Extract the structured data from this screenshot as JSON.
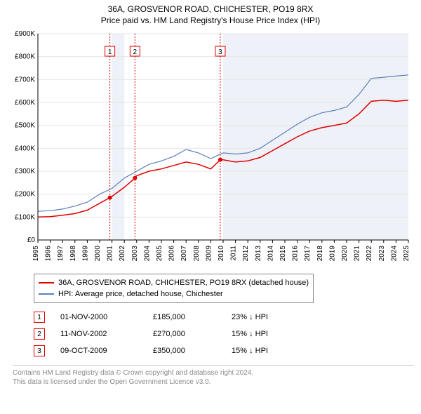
{
  "header": {
    "title": "36A, GROSVENOR ROAD, CHICHESTER, PO19 8RX",
    "subtitle": "Price paid vs. HM Land Registry's House Price Index (HPI)"
  },
  "chart": {
    "type": "line",
    "background_color": "#ffffff",
    "y": {
      "min": 0,
      "max": 900000,
      "step": 100000,
      "labels": [
        "£0",
        "£100K",
        "£200K",
        "£300K",
        "£400K",
        "£500K",
        "£600K",
        "£700K",
        "£800K",
        "£900K"
      ],
      "grid_color": "#e6e6e6",
      "axis_color": "#000000",
      "label_fontsize": 10,
      "label_color": "#000000"
    },
    "x": {
      "years": [
        1995,
        1996,
        1997,
        1998,
        1999,
        2000,
        2001,
        2002,
        2003,
        2004,
        2005,
        2006,
        2007,
        2008,
        2009,
        2010,
        2011,
        2012,
        2013,
        2014,
        2015,
        2016,
        2017,
        2018,
        2019,
        2020,
        2021,
        2022,
        2023,
        2024,
        2025
      ],
      "label_fontsize": 10,
      "label_color": "#000000",
      "axis_color": "#000000"
    },
    "highlight_band": {
      "from": 2001,
      "to": 2002,
      "fill": "#eef2f8"
    },
    "highlight_band2": {
      "from": 2010,
      "to": 2025,
      "fill": "#eef2f8"
    },
    "event_markers": [
      {
        "n": "1",
        "year": 2000.83,
        "line_color": "#e00000",
        "box_border": "#e00000"
      },
      {
        "n": "2",
        "year": 2002.86,
        "line_color": "#e00000",
        "box_border": "#e00000"
      },
      {
        "n": "3",
        "year": 2009.77,
        "line_color": "#e00000",
        "box_border": "#e00000"
      }
    ],
    "series": [
      {
        "name": "red",
        "color": "#e00000",
        "width": 1.5,
        "points": [
          [
            1995,
            100000
          ],
          [
            1996,
            102000
          ],
          [
            1997,
            108000
          ],
          [
            1998,
            115000
          ],
          [
            1999,
            130000
          ],
          [
            2000,
            160000
          ],
          [
            2000.83,
            185000
          ],
          [
            2001,
            190000
          ],
          [
            2002,
            230000
          ],
          [
            2002.86,
            270000
          ],
          [
            2003,
            280000
          ],
          [
            2004,
            300000
          ],
          [
            2005,
            310000
          ],
          [
            2006,
            325000
          ],
          [
            2007,
            340000
          ],
          [
            2008,
            330000
          ],
          [
            2009,
            310000
          ],
          [
            2009.77,
            350000
          ],
          [
            2010,
            350000
          ],
          [
            2011,
            340000
          ],
          [
            2012,
            345000
          ],
          [
            2013,
            360000
          ],
          [
            2014,
            390000
          ],
          [
            2015,
            420000
          ],
          [
            2016,
            450000
          ],
          [
            2017,
            475000
          ],
          [
            2018,
            490000
          ],
          [
            2019,
            500000
          ],
          [
            2020,
            510000
          ],
          [
            2021,
            550000
          ],
          [
            2022,
            605000
          ],
          [
            2023,
            610000
          ],
          [
            2024,
            605000
          ],
          [
            2025,
            610000
          ]
        ],
        "sale_markers": [
          {
            "year": 2000.83,
            "value": 185000
          },
          {
            "year": 2002.86,
            "value": 270000
          },
          {
            "year": 2009.77,
            "value": 350000
          }
        ]
      },
      {
        "name": "blue",
        "color": "#5b7fb8",
        "width": 1.2,
        "points": [
          [
            1995,
            125000
          ],
          [
            1996,
            128000
          ],
          [
            1997,
            135000
          ],
          [
            1998,
            148000
          ],
          [
            1999,
            165000
          ],
          [
            2000,
            200000
          ],
          [
            2001,
            225000
          ],
          [
            2002,
            270000
          ],
          [
            2003,
            300000
          ],
          [
            2004,
            330000
          ],
          [
            2005,
            345000
          ],
          [
            2006,
            365000
          ],
          [
            2007,
            395000
          ],
          [
            2008,
            380000
          ],
          [
            2009,
            355000
          ],
          [
            2010,
            380000
          ],
          [
            2011,
            375000
          ],
          [
            2012,
            380000
          ],
          [
            2013,
            400000
          ],
          [
            2014,
            435000
          ],
          [
            2015,
            470000
          ],
          [
            2016,
            505000
          ],
          [
            2017,
            535000
          ],
          [
            2018,
            555000
          ],
          [
            2019,
            565000
          ],
          [
            2020,
            580000
          ],
          [
            2021,
            635000
          ],
          [
            2022,
            705000
          ],
          [
            2023,
            710000
          ],
          [
            2024,
            715000
          ],
          [
            2025,
            720000
          ]
        ]
      }
    ]
  },
  "legend": {
    "items": [
      {
        "color": "#e00000",
        "label": "36A, GROSVENOR ROAD, CHICHESTER, PO19 8RX (detached house)"
      },
      {
        "color": "#5b7fb8",
        "label": "HPI: Average price, detached house, Chichester"
      }
    ]
  },
  "events": [
    {
      "n": "1",
      "date": "01-NOV-2000",
      "price": "£185,000",
      "delta": "23% ↓ HPI"
    },
    {
      "n": "2",
      "date": "11-NOV-2002",
      "price": "£270,000",
      "delta": "15% ↓ HPI"
    },
    {
      "n": "3",
      "date": "09-OCT-2009",
      "price": "£350,000",
      "delta": "15% ↓ HPI"
    }
  ],
  "footer": {
    "line1": "Contains HM Land Registry data © Crown copyright and database right 2024.",
    "line2": "This data is licensed under the Open Government Licence v3.0."
  }
}
